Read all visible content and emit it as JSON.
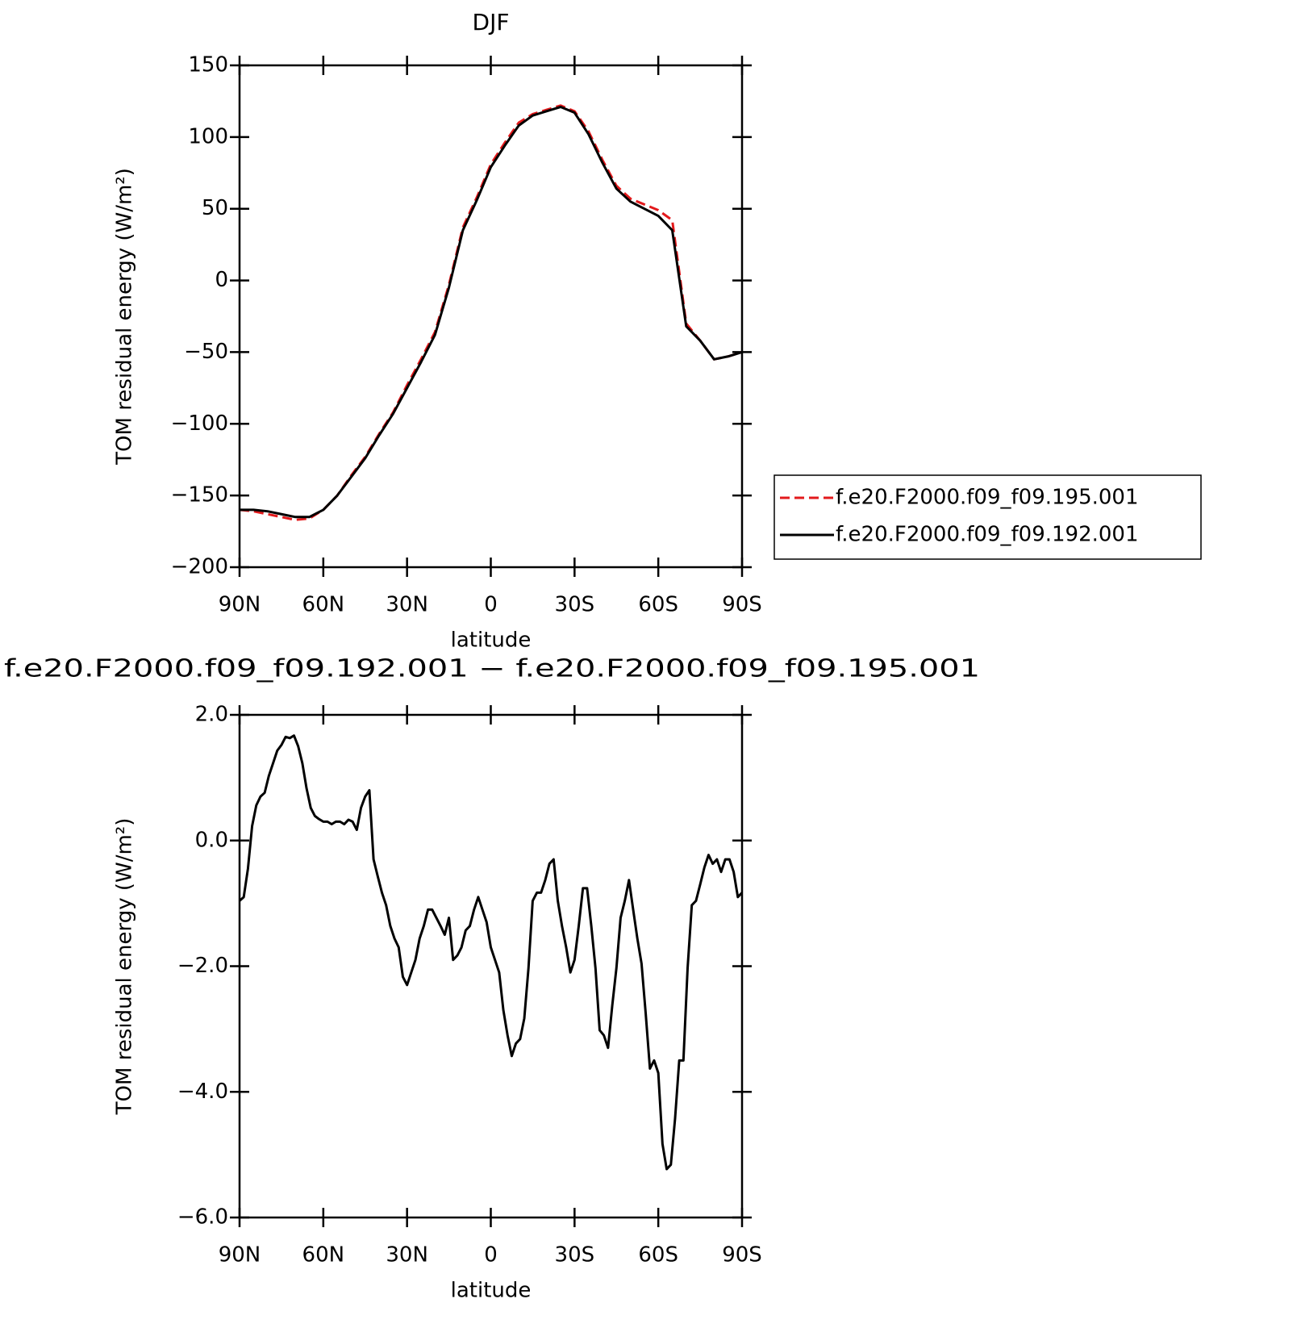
{
  "chart_data": [
    {
      "type": "line",
      "title": "DJF",
      "x_label": "latitude",
      "y_label": "TOM residual energy (W/m²)",
      "x": [
        90,
        85,
        80,
        75,
        70,
        65,
        60,
        55,
        50,
        45,
        40,
        35,
        30,
        25,
        20,
        15,
        10,
        5,
        0,
        -5,
        -10,
        -15,
        -20,
        -25,
        -30,
        -35,
        -40,
        -45,
        -50,
        -55,
        -60,
        -65,
        -70,
        -75,
        -80,
        -85,
        -90
      ],
      "series": [
        {
          "name": "f.e20.F2000.f09_f09.195.001",
          "color": "#e31a1c",
          "dash": true,
          "values": [
            -160,
            -161,
            -163,
            -165,
            -167,
            -166,
            -160,
            -150,
            -136,
            -123,
            -107,
            -92,
            -73,
            -55,
            -36,
            -3,
            37,
            58,
            81,
            96,
            110,
            116,
            119,
            122,
            118,
            104,
            84,
            66,
            57,
            53,
            49,
            42,
            -30,
            -42,
            -55,
            -53,
            -50
          ]
        },
        {
          "name": "f.e20.F2000.f09_f09.192.001",
          "color": "#000000",
          "dash": false,
          "values": [
            -160,
            -160,
            -161,
            -163,
            -165,
            -165,
            -160,
            -150,
            -137,
            -124,
            -108,
            -93,
            -75,
            -57,
            -38,
            -5,
            35,
            56,
            79,
            94,
            108,
            115,
            118,
            121,
            117,
            102,
            82,
            64,
            55,
            50,
            45,
            35,
            -32,
            -42,
            -55,
            -53,
            -50
          ]
        }
      ],
      "xlim": [
        90,
        -90
      ],
      "xticks": [
        {
          "value": 90,
          "label": "90N"
        },
        {
          "value": 60,
          "label": "60N"
        },
        {
          "value": 30,
          "label": "30N"
        },
        0,
        {
          "value": -30,
          "label": "30S"
        },
        {
          "value": -60,
          "label": "60S"
        },
        {
          "value": -90,
          "label": "90S"
        }
      ],
      "ylim": [
        -200,
        150
      ],
      "yticks": [
        {
          "value": -200,
          "label": "−200"
        },
        {
          "value": -150,
          "label": "−150"
        },
        {
          "value": -100,
          "label": "−100"
        },
        {
          "value": -50,
          "label": "−50"
        },
        0,
        50,
        100,
        150
      ],
      "legend": "right"
    },
    {
      "type": "line",
      "title": "f.e20.F2000.f09_f09.192.001 − f.e20.F2000.f09_f09.195.001",
      "x_label": "latitude",
      "y_label": "TOM residual energy (W/m²)",
      "x": [
        90,
        88.5,
        87,
        85.5,
        84,
        82.5,
        81,
        79.5,
        78,
        76.5,
        75,
        73.5,
        72,
        70.5,
        69,
        67.5,
        66,
        64.5,
        63,
        61.5,
        60,
        58.5,
        57,
        55.5,
        54,
        52.5,
        51,
        49.5,
        48,
        46.5,
        45,
        43.5,
        42,
        40.5,
        39,
        37.5,
        36,
        34.5,
        33,
        31.5,
        30,
        28.5,
        27,
        25.5,
        24,
        22.5,
        21,
        19.5,
        18,
        16.5,
        15,
        13.5,
        12,
        10.5,
        9,
        7.5,
        6,
        4.5,
        3,
        1.5,
        0,
        -1.5,
        -3,
        -4.5,
        -6,
        -7.5,
        -9,
        -10.5,
        -12,
        -13.5,
        -15,
        -16.5,
        -18,
        -19.5,
        -21,
        -22.5,
        -24,
        -25.5,
        -27,
        -28.5,
        -30,
        -31.5,
        -33,
        -34.5,
        -36,
        -37.5,
        -39,
        -40.5,
        -42,
        -43.5,
        -45,
        -46.5,
        -48,
        -49.5,
        -51,
        -52.5,
        -54,
        -55.5,
        -57,
        -58.5,
        -60,
        -61.5,
        -63,
        -64.5,
        -66,
        -67.5,
        -69,
        -70.5,
        -72,
        -73.5,
        -75,
        -76.5,
        -78,
        -79.5,
        -81,
        -82.5,
        -84,
        -85.5,
        -87,
        -88.5,
        -90
      ],
      "values": [
        -0.96,
        -0.9,
        -0.45,
        0.23,
        0.56,
        0.7,
        0.76,
        1.03,
        1.23,
        1.43,
        1.52,
        1.65,
        1.63,
        1.67,
        1.5,
        1.23,
        0.83,
        0.52,
        0.39,
        0.34,
        0.3,
        0.3,
        0.26,
        0.3,
        0.3,
        0.26,
        0.33,
        0.3,
        0.17,
        0.52,
        0.7,
        0.8,
        -0.3,
        -0.57,
        -0.83,
        -1.03,
        -1.36,
        -1.56,
        -1.7,
        -2.17,
        -2.3,
        -2.1,
        -1.9,
        -1.56,
        -1.36,
        -1.1,
        -1.1,
        -1.23,
        -1.36,
        -1.5,
        -1.23,
        -1.9,
        -1.83,
        -1.7,
        -1.43,
        -1.36,
        -1.1,
        -0.9,
        -1.1,
        -1.3,
        -1.7,
        -1.9,
        -2.1,
        -2.7,
        -3.1,
        -3.43,
        -3.23,
        -3.16,
        -2.83,
        -2.03,
        -0.96,
        -0.83,
        -0.83,
        -0.63,
        -0.37,
        -0.3,
        -0.96,
        -1.36,
        -1.7,
        -2.1,
        -1.9,
        -1.36,
        -0.76,
        -0.76,
        -1.36,
        -2.03,
        -3.02,
        -3.1,
        -3.3,
        -2.63,
        -2.03,
        -1.23,
        -0.96,
        -0.63,
        -1.1,
        -1.56,
        -1.96,
        -2.76,
        -3.63,
        -3.5,
        -3.7,
        -4.83,
        -5.23,
        -5.16,
        -4.43,
        -3.5,
        -3.5,
        -2.03,
        -1.03,
        -0.96,
        -0.7,
        -0.43,
        -0.23,
        -0.37,
        -0.3,
        -0.5,
        -0.3,
        -0.3,
        -0.5,
        -0.9,
        -0.83
      ],
      "color": "#000000",
      "xlim": [
        90,
        -90
      ],
      "xticks": [
        {
          "value": 90,
          "label": "90N"
        },
        {
          "value": 60,
          "label": "60N"
        },
        {
          "value": 30,
          "label": "30N"
        },
        0,
        {
          "value": -30,
          "label": "30S"
        },
        {
          "value": -60,
          "label": "60S"
        },
        {
          "value": -90,
          "label": "90S"
        }
      ],
      "ylim": [
        -6,
        2
      ],
      "yticks": [
        {
          "value": -6,
          "label": "−6.0"
        },
        {
          "value": -4,
          "label": "−4.0"
        },
        {
          "value": -2,
          "label": "−2.0"
        },
        {
          "value": 0,
          "label": "0.0"
        },
        {
          "value": 2,
          "label": "2.0"
        }
      ]
    }
  ]
}
